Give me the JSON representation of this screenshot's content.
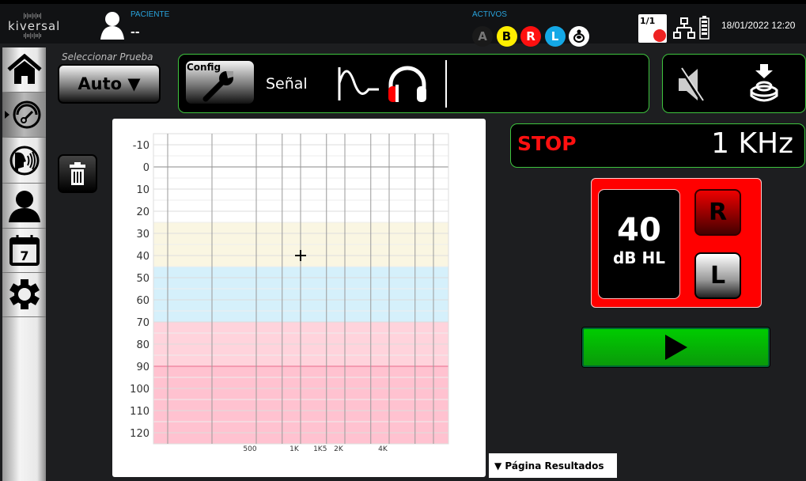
{
  "header": {
    "logo_text": "kiversal",
    "patient_label": "PACIENTE",
    "patient_value": "--",
    "active_label": "ACTIVOS",
    "active_indicators": [
      {
        "label": "A",
        "bg": "#1a1a1a",
        "fg": "#777"
      },
      {
        "label": "B",
        "bg": "#ffee00",
        "fg": "#000"
      },
      {
        "label": "R",
        "bg": "#ff1010",
        "fg": "#fff"
      },
      {
        "label": "L",
        "bg": "#14a8e6",
        "fg": "#fff"
      },
      {
        "label": "",
        "icon": "response-button-icon",
        "bg": "#ffffff",
        "fg": "#000"
      }
    ],
    "session_counter": "1/1",
    "datetime": "18/01/2022 12:20"
  },
  "sidebar": {
    "items": [
      {
        "name": "home",
        "icon": "home-icon"
      },
      {
        "name": "audiometry",
        "icon": "gauge-icon",
        "selected": true
      },
      {
        "name": "speech",
        "icon": "speech-icon"
      },
      {
        "name": "patient",
        "icon": "user-icon"
      },
      {
        "name": "calendar",
        "icon": "calendar-icon",
        "day": "7"
      },
      {
        "name": "settings",
        "icon": "gear-icon"
      }
    ]
  },
  "test_select": {
    "label": "Seleccionar Prueba",
    "value": "Auto ▼"
  },
  "config": {
    "button_label": "Config",
    "signal_label": "Señal"
  },
  "status": {
    "state": "STOP",
    "frequency": "1 KHz",
    "state_color": "#ff1010"
  },
  "level": {
    "value": "40",
    "unit": "dB HL",
    "right_label": "R",
    "left_label": "L",
    "active_ear": "R"
  },
  "results_tab": {
    "label": "▼  Página Resultados"
  },
  "chart_data": {
    "type": "scatter",
    "x_scale": "log",
    "y_inverted": true,
    "ylim": [
      -15,
      125
    ],
    "y_ticks": [
      -10,
      0,
      10,
      20,
      30,
      40,
      50,
      60,
      70,
      80,
      90,
      100,
      110,
      120
    ],
    "x_grid": [
      125,
      250,
      500,
      750,
      1000,
      1500,
      2000,
      3000,
      4000,
      6000,
      8000
    ],
    "x_tick_labels": [
      {
        "f": 500,
        "label": "500"
      },
      {
        "f": 1000,
        "label": "1K"
      },
      {
        "f": 1500,
        "label": "1K5"
      },
      {
        "f": 2000,
        "label": "2K"
      },
      {
        "f": 4000,
        "label": "4K"
      }
    ],
    "bands": [
      {
        "from": 25,
        "to": 45,
        "color": "#faf6e2"
      },
      {
        "from": 45,
        "to": 70,
        "color": "#d5f0fb"
      },
      {
        "from": 70,
        "to": 90,
        "color": "#ffd3dc"
      },
      {
        "from": 90,
        "to": 125,
        "color": "#ffc2d0"
      }
    ],
    "points": [
      {
        "x": 1000,
        "y": 40,
        "marker": "cross"
      }
    ]
  }
}
